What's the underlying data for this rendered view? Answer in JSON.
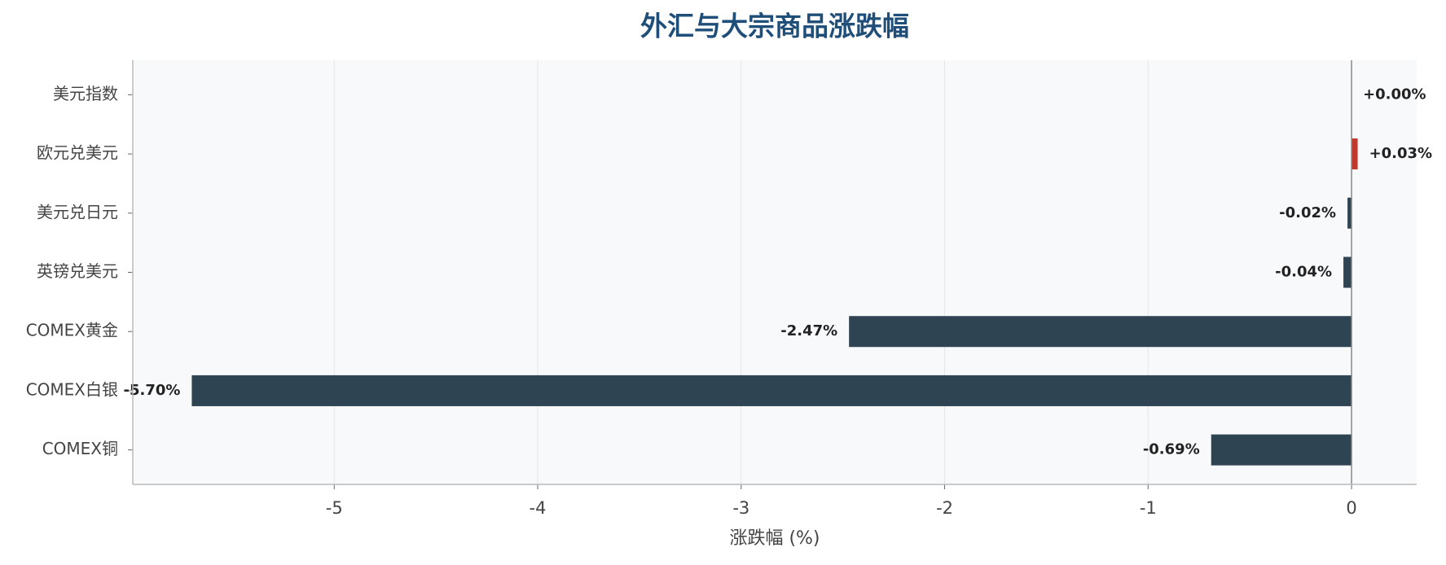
{
  "chart_data": {
    "type": "bar",
    "orientation": "horizontal",
    "title": "外汇与大宗商品涨跌幅",
    "x_label": "涨跌幅 (%)",
    "categories": [
      "美元指数",
      "欧元兑美元",
      "美元兑日元",
      "英镑兑美元",
      "COMEX黄金",
      "COMEX白银",
      "COMEX铜"
    ],
    "values": [
      0.0,
      0.03,
      -0.02,
      -0.04,
      -2.47,
      -5.7,
      -0.69
    ],
    "value_labels": [
      "+0.00%",
      "+0.03%",
      "-0.02%",
      "-0.04%",
      "-2.47%",
      "-5.70%",
      "-0.69%"
    ],
    "positive_color": "#c0392b",
    "negative_color": "#2e4453",
    "xlim": [
      -5.99,
      0.32
    ],
    "xticks": [
      -5,
      -4,
      -3,
      -2,
      -1,
      0
    ],
    "grid": true
  }
}
